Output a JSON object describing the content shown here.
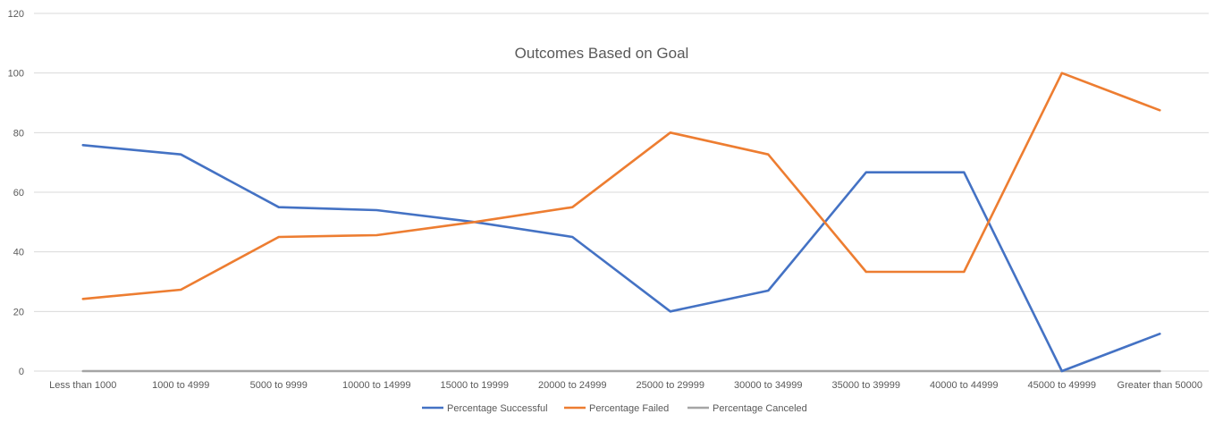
{
  "chart_data": {
    "type": "line",
    "title": "Outcomes Based on Goal",
    "xlabel": "",
    "ylabel": "",
    "ylim": [
      0,
      120
    ],
    "yticks": [
      "0",
      "20",
      "40",
      "60",
      "80",
      "100",
      "120"
    ],
    "categories": [
      "Less than 1000",
      "1000 to 4999",
      "5000 to 9999",
      "10000 to 14999",
      "15000 to 19999",
      "20000 to 24999",
      "25000 to 29999",
      "30000 to 34999",
      "35000 to 39999",
      "40000 to 44999",
      "45000 to 49999",
      "Greater than 50000"
    ],
    "series": [
      {
        "name": "Percentage Successful",
        "color": "#4472c4",
        "values": [
          75.8,
          72.7,
          55.0,
          54.0,
          50.0,
          45.0,
          20.0,
          27.0,
          66.7,
          66.7,
          0,
          12.5
        ]
      },
      {
        "name": "Percentage Failed",
        "color": "#ed7d31",
        "values": [
          24.2,
          27.3,
          45.0,
          45.6,
          50.0,
          55.0,
          80.0,
          72.7,
          33.3,
          33.3,
          100,
          87.5
        ]
      },
      {
        "name": "Percentage Canceled",
        "color": "#a5a5a5",
        "values": [
          0,
          0,
          0,
          0,
          0,
          0,
          0,
          0,
          0,
          0,
          0,
          0
        ]
      }
    ],
    "grid": true,
    "legend_position": "bottom"
  }
}
